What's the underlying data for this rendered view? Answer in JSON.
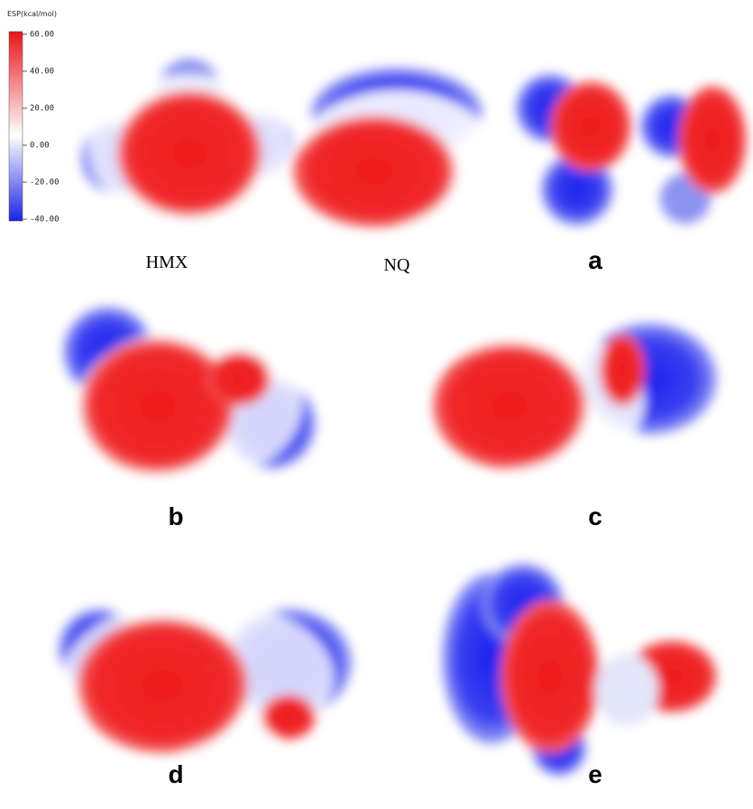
{
  "colorbar": {
    "title": "ESP(kcal/mol)",
    "ticks": [
      "60.00",
      "40.00",
      "20.00",
      "0.00",
      "-20.00",
      "-40.00"
    ]
  },
  "panels": [
    {
      "label": "HMX"
    },
    {
      "label": "NQ"
    },
    {
      "label": "a"
    },
    {
      "label": "b"
    },
    {
      "label": "c"
    },
    {
      "label": "d"
    },
    {
      "label": "e"
    }
  ]
}
